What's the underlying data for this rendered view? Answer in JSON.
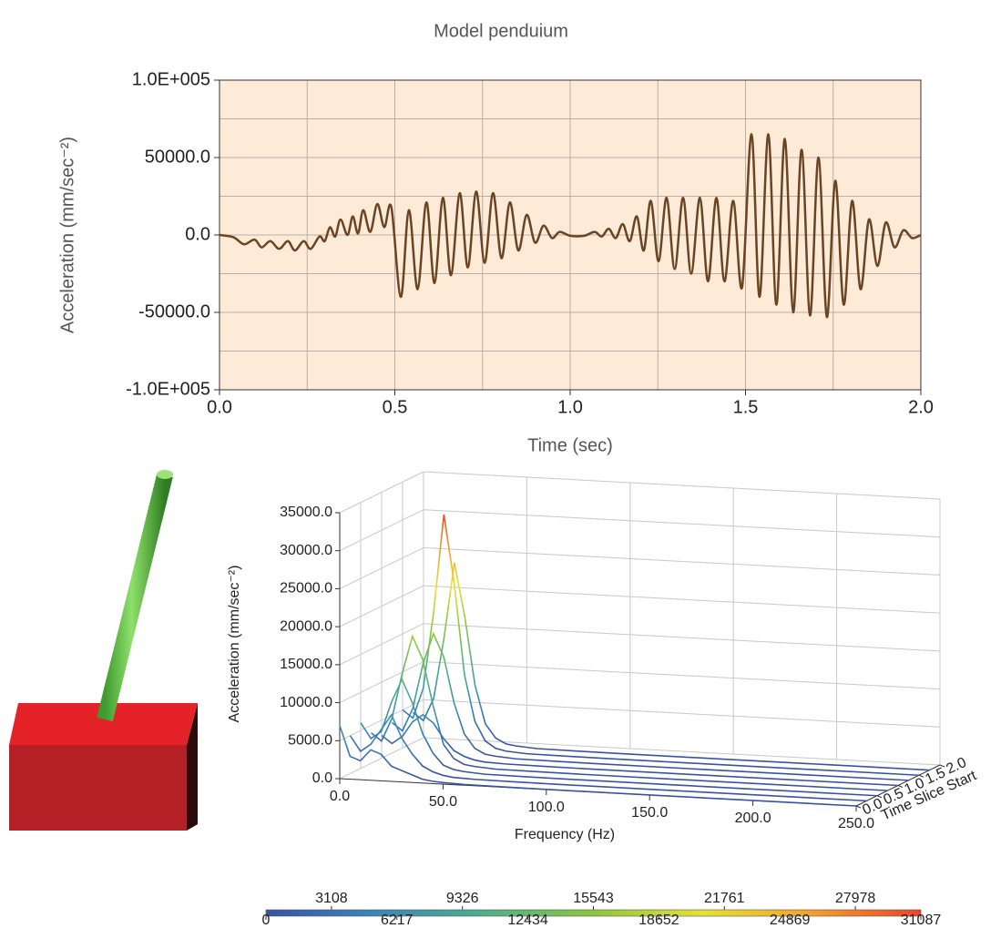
{
  "chart_data": [
    {
      "type": "line",
      "title": "Model penduium",
      "xlabel": "Time (sec)",
      "ylabel": "Acceleration (mm/sec⁻²)",
      "x": [
        0,
        0.04,
        0.07,
        0.1,
        0.12,
        0.145,
        0.17,
        0.195,
        0.215,
        0.24,
        0.26,
        0.285,
        0.3,
        0.315,
        0.33,
        0.345,
        0.365,
        0.38,
        0.395,
        0.41,
        0.43,
        0.45,
        0.47,
        0.49,
        0.517,
        0.54,
        0.565,
        0.59,
        0.613,
        0.637,
        0.66,
        0.685,
        0.708,
        0.732,
        0.756,
        0.78,
        0.804,
        0.828,
        0.852,
        0.876,
        0.9,
        0.924,
        0.948,
        0.97,
        1.0,
        1.04,
        1.07,
        1.09,
        1.11,
        1.13,
        1.15,
        1.17,
        1.19,
        1.21,
        1.23,
        1.252,
        1.275,
        1.298,
        1.322,
        1.345,
        1.37,
        1.393,
        1.417,
        1.44,
        1.465,
        1.49,
        1.517,
        1.54,
        1.565,
        1.588,
        1.612,
        1.636,
        1.66,
        1.684,
        1.708,
        1.732,
        1.756,
        1.78,
        1.804,
        1.828,
        1.852,
        1.876,
        1.9,
        1.925,
        1.95,
        1.975,
        2.0
      ],
      "values": [
        0,
        -1500,
        -6000,
        -3000,
        -8000,
        -4000,
        -9000,
        -4000,
        -10000,
        -4000,
        -9000,
        -1000,
        -4000,
        5000,
        -1000,
        10000,
        0,
        12000,
        1000,
        16000,
        2000,
        20000,
        5000,
        18000,
        -40000,
        16000,
        -35000,
        21000,
        -31000,
        24000,
        -26000,
        27000,
        -21000,
        28000,
        -18000,
        27000,
        -15000,
        21000,
        -10000,
        13000,
        -5000,
        6000,
        -2000,
        2000,
        -500,
        -500,
        2000,
        -1000,
        4000,
        -2000,
        7000,
        -4000,
        12000,
        -10000,
        22000,
        -17000,
        24000,
        -22000,
        24000,
        -25000,
        24000,
        -30000,
        24000,
        -30000,
        22000,
        -34000,
        65000,
        -40000,
        65000,
        -45000,
        62000,
        -50000,
        55000,
        -52000,
        50000,
        -53000,
        35000,
        -45000,
        22000,
        -35000,
        10000,
        -20000,
        8000,
        -8000,
        3000,
        -2000,
        0
      ],
      "color": "#6b4423",
      "background": "#fdebd8",
      "xlim": [
        0,
        2
      ],
      "ylim": [
        -100000,
        100000
      ],
      "xticks": [
        {
          "value": 0,
          "label": "0.0"
        },
        {
          "value": 0.5,
          "label": "0.5"
        },
        {
          "value": 1,
          "label": "1.0"
        },
        {
          "value": 1.5,
          "label": "1.5"
        },
        {
          "value": 2,
          "label": "2.0"
        }
      ],
      "xminor": [
        0.25,
        0.75,
        1.25,
        1.75
      ],
      "yticks": [
        {
          "value": -100000,
          "label": "-1.0E+005"
        },
        {
          "value": -50000,
          "label": "-50000.0"
        },
        {
          "value": 0,
          "label": "0.0"
        },
        {
          "value": 50000,
          "label": "50000.0"
        },
        {
          "value": 100000,
          "label": "1.0E+005"
        }
      ],
      "yminor": [
        -75000,
        -25000,
        25000,
        75000
      ],
      "grid": true
    },
    {
      "type": "waterfall",
      "xlabel": "Frequency (Hz)",
      "ylabel": "Acceleration (mm/sec⁻²)",
      "zlabel": "Time Slice Start",
      "frequencies": [
        0,
        5,
        10,
        15,
        20,
        25,
        30,
        35,
        40,
        45,
        50,
        60,
        80,
        100,
        150,
        200,
        250
      ],
      "slices": [
        {
          "t": 0,
          "values": [
            7000,
            3000,
            2500,
            4000,
            3500,
            2000,
            1500,
            1000,
            500,
            300,
            200,
            100,
            50,
            20,
            10,
            5,
            0
          ]
        },
        {
          "t": 0.25,
          "values": [
            5000,
            3000,
            4000,
            6000,
            8000,
            5000,
            3000,
            1500,
            800,
            400,
            200,
            100,
            50,
            20,
            10,
            5,
            0
          ]
        },
        {
          "t": 0.5,
          "values": [
            6000,
            4000,
            5000,
            9000,
            12000,
            9000,
            5000,
            2500,
            1000,
            500,
            300,
            100,
            50,
            20,
            10,
            5,
            0
          ]
        },
        {
          "t": 0.75,
          "values": [
            4000,
            3000,
            6000,
            12000,
            17000,
            14000,
            8000,
            3000,
            1200,
            500,
            300,
            100,
            50,
            20,
            10,
            5,
            0
          ]
        },
        {
          "t": 1.0,
          "values": [
            3000,
            2000,
            3000,
            5000,
            6000,
            5000,
            3000,
            1500,
            800,
            400,
            200,
            100,
            50,
            20,
            10,
            5,
            0
          ]
        },
        {
          "t": 1.25,
          "values": [
            4000,
            3000,
            6000,
            12000,
            16000,
            13000,
            7000,
            3000,
            1200,
            500,
            300,
            100,
            50,
            20,
            10,
            5,
            0
          ]
        },
        {
          "t": 1.5,
          "values": [
            5000,
            4000,
            8000,
            18000,
            31000,
            22000,
            10000,
            4000,
            1500,
            600,
            300,
            100,
            50,
            20,
            10,
            5,
            0
          ]
        },
        {
          "t": 1.75,
          "values": [
            4000,
            3000,
            6000,
            14000,
            24000,
            17000,
            8000,
            3000,
            1200,
            500,
            300,
            100,
            50,
            20,
            10,
            5,
            0
          ]
        }
      ],
      "xlim": [
        0,
        250
      ],
      "ylim": [
        0,
        35000
      ],
      "zlim": [
        0,
        2
      ],
      "xticks": [
        {
          "value": 0,
          "label": "0.0"
        },
        {
          "value": 50,
          "label": "50.0"
        },
        {
          "value": 100,
          "label": "100.0"
        },
        {
          "value": 150,
          "label": "150.0"
        },
        {
          "value": 200,
          "label": "200.0"
        },
        {
          "value": 250,
          "label": "250.0"
        }
      ],
      "yticks": [
        {
          "value": 0,
          "label": "0.0"
        },
        {
          "value": 5000,
          "label": "5000.0"
        },
        {
          "value": 10000,
          "label": "10000.0"
        },
        {
          "value": 15000,
          "label": "15000.0"
        },
        {
          "value": 20000,
          "label": "20000.0"
        },
        {
          "value": 25000,
          "label": "25000.0"
        },
        {
          "value": 30000,
          "label": "30000.0"
        },
        {
          "value": 35000,
          "label": "35000.0"
        }
      ],
      "zticks": [
        {
          "value": 0,
          "label": "0.0"
        },
        {
          "value": 0.5,
          "label": "0.5"
        },
        {
          "value": 1,
          "label": "1.0"
        },
        {
          "value": 1.5,
          "label": "1.5"
        },
        {
          "value": 2,
          "label": "2.0"
        }
      ],
      "grid": true
    },
    {
      "type": "colorbar",
      "lim": [
        0,
        31087
      ],
      "ticks": [
        0,
        3108,
        6217,
        9326,
        12434,
        15543,
        18652,
        21761,
        24869,
        27978,
        31087
      ],
      "colors": [
        "#3953a4",
        "#3a86b8",
        "#4fae8c",
        "#8cc63f",
        "#e3e234",
        "#f3a12c",
        "#e8452a"
      ]
    }
  ]
}
